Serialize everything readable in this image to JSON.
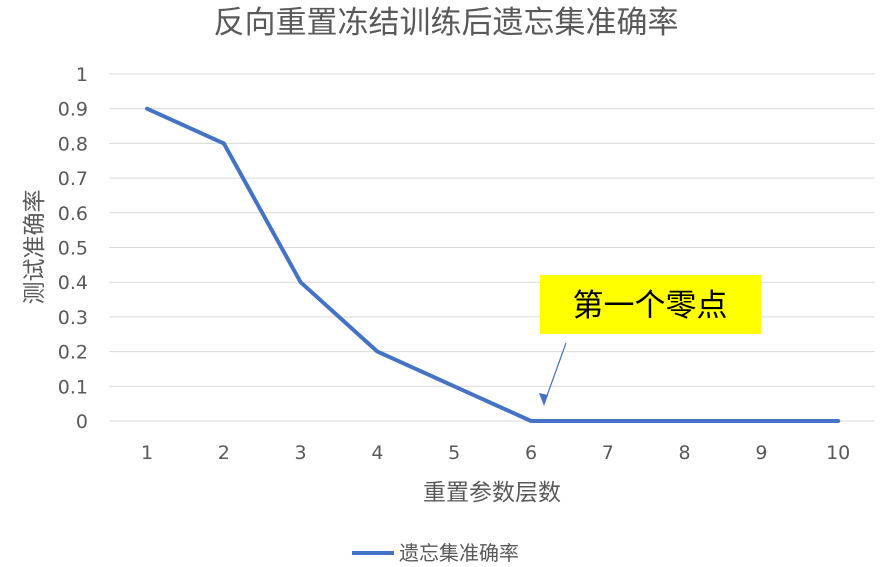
{
  "chart_data": {
    "type": "line",
    "title": "反向重置冻结训练后遗忘集准确率",
    "xlabel": "重置参数层数",
    "ylabel": "测试准确率",
    "x": [
      1,
      2,
      3,
      4,
      5,
      6,
      7,
      8,
      9,
      10
    ],
    "xticks": [
      "1",
      "2",
      "3",
      "4",
      "5",
      "6",
      "7",
      "8",
      "9",
      "10"
    ],
    "yticks": [
      "0",
      "0.1",
      "0.2",
      "0.3",
      "0.4",
      "0.5",
      "0.6",
      "0.7",
      "0.8",
      "0.9",
      "1"
    ],
    "ylim": [
      0,
      1
    ],
    "grid": true,
    "legend_position": "bottom",
    "series": [
      {
        "name": "遗忘集准确率",
        "color": "#4472C4",
        "values": [
          0.9,
          0.8,
          0.4,
          0.2,
          0.1,
          0,
          0,
          0,
          0,
          0
        ]
      }
    ],
    "annotations": [
      {
        "text": "第一个零点",
        "background": "#FFFF00",
        "points_to": {
          "x": 6,
          "y": 0
        }
      }
    ]
  },
  "colors": {
    "gridline": "#D9D9D9",
    "text": "#595959",
    "arrow": "#4472C4"
  }
}
